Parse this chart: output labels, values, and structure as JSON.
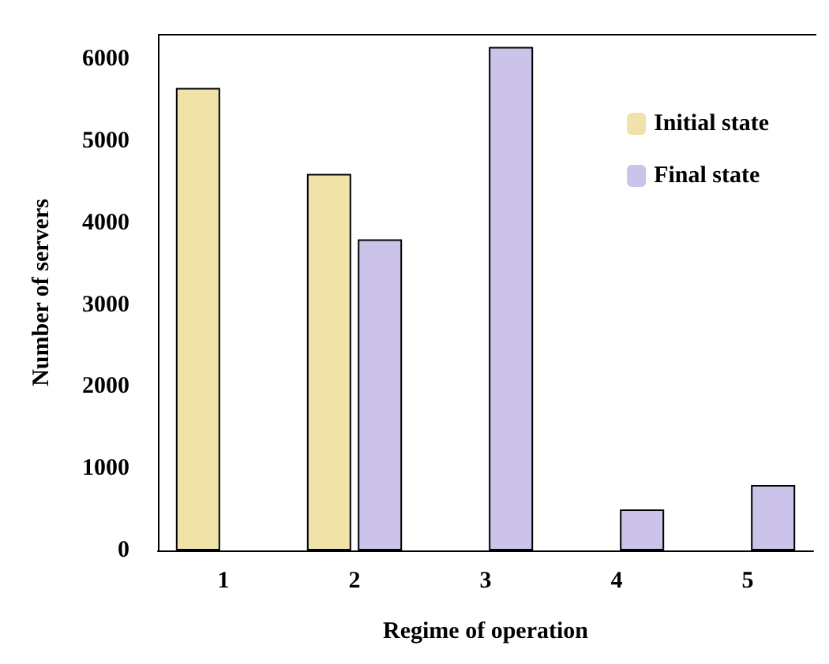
{
  "chart_data": {
    "type": "bar",
    "xlabel": "Regime of operation",
    "ylabel": "Number of servers",
    "categories": [
      "1",
      "2",
      "3",
      "4",
      "5"
    ],
    "series": [
      {
        "name": "Initial state",
        "color": "#efe3a9",
        "values": [
          5650,
          4600,
          null,
          null,
          null
        ]
      },
      {
        "name": "Final state",
        "color": "#cbc3ea",
        "values": [
          null,
          3800,
          6150,
          500,
          800
        ]
      }
    ],
    "ylim": [
      0,
      6300
    ],
    "yticks": [
      0,
      1000,
      2000,
      3000,
      4000,
      5000,
      6000
    ],
    "grid": false,
    "legend": "top right"
  }
}
